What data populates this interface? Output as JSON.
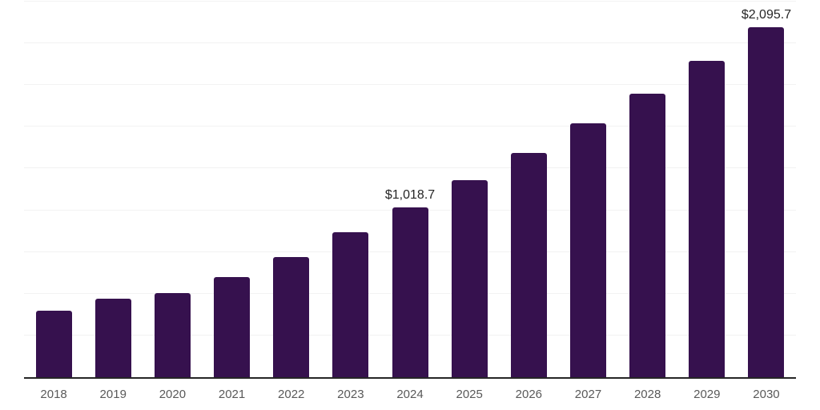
{
  "page": {
    "background": "#ffffff"
  },
  "chart_data": {
    "type": "bar",
    "title": "",
    "xlabel": "",
    "ylabel": "",
    "categories": [
      "2018",
      "2019",
      "2020",
      "2021",
      "2022",
      "2023",
      "2024",
      "2025",
      "2026",
      "2027",
      "2028",
      "2029",
      "2030"
    ],
    "values": [
      400,
      470,
      505,
      600,
      720,
      870,
      1018.7,
      1180,
      1345,
      1520,
      1700,
      1895,
      2095.7
    ],
    "data_labels": [
      {
        "category": "2024",
        "text": "$1,018.7"
      },
      {
        "category": "2030",
        "text": "$2,095.7"
      }
    ],
    "ylim": [
      0,
      2250
    ],
    "gridline_interval": 250,
    "grid": true,
    "legend": false,
    "colors": {
      "bar": "#36114E",
      "axis_line": "#262626",
      "gridline": "#f2f2f2",
      "tick_label": "#595959",
      "data_label": "#262626"
    }
  }
}
